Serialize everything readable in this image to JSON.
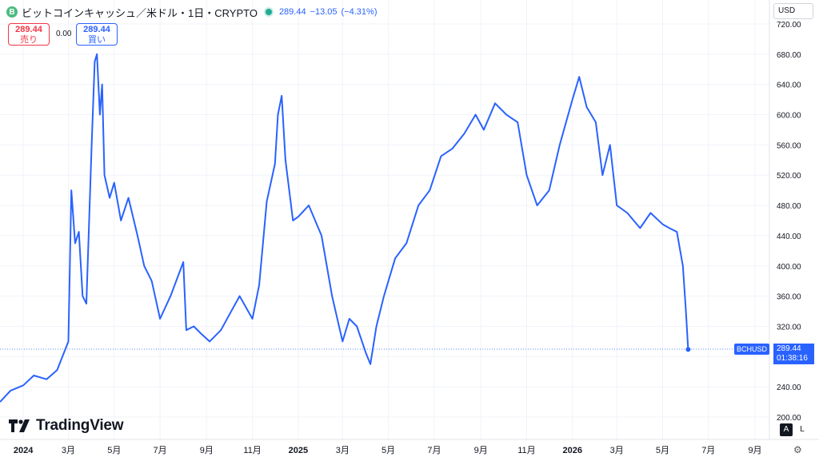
{
  "header": {
    "coin_letter": "B",
    "symbol_title": "ビットコインキャッシュ／米ドル・1日・CRYPTO",
    "last": "289.44",
    "change": "−13.05",
    "change_pct": "(−4.31%)"
  },
  "sell": {
    "price": "289.44",
    "label": "売り"
  },
  "buy": {
    "price": "289.44",
    "label": "買い"
  },
  "spread": "0.00",
  "currency": "USD",
  "brand": "TradingView",
  "last_tag": {
    "symbol": "BCHUSD",
    "price": "289.44",
    "countdown": "01:38:16"
  },
  "buttons": {
    "auto": "A",
    "log": "L"
  },
  "colors": {
    "line": "#2962ff",
    "up": "#22ab94",
    "down": "#f23645",
    "grid": "#f0f3fa"
  },
  "chart_data": {
    "type": "line",
    "series": [
      {
        "name": "",
        "x": [
          "2023-12-01",
          "2023-12-15",
          "2024-01-01",
          "2024-01-15",
          "2024-02-01",
          "2024-02-15",
          "2024-03-01",
          "2024-03-05",
          "2024-03-10",
          "2024-03-15",
          "2024-03-20",
          "2024-03-25",
          "2024-04-01",
          "2024-04-05",
          "2024-04-08",
          "2024-04-12",
          "2024-04-15",
          "2024-04-18",
          "2024-04-25",
          "2024-05-01",
          "2024-05-10",
          "2024-05-20",
          "2024-06-01",
          "2024-06-10",
          "2024-06-20",
          "2024-07-01",
          "2024-07-15",
          "2024-08-01",
          "2024-08-05",
          "2024-08-15",
          "2024-08-25",
          "2024-09-05",
          "2024-09-20",
          "2024-10-01",
          "2024-10-15",
          "2024-11-01",
          "2024-11-10",
          "2024-11-20",
          "2024-12-01",
          "2024-12-05",
          "2024-12-10",
          "2024-12-15",
          "2024-12-25",
          "2025-01-01",
          "2025-01-15",
          "2025-02-01",
          "2025-02-15",
          "2025-03-01",
          "2025-03-10",
          "2025-03-20",
          "2025-04-01",
          "2025-04-07",
          "2025-04-15",
          "2025-04-25",
          "2025-05-10",
          "2025-05-25",
          "2025-06-10",
          "2025-06-25",
          "2025-07-10",
          "2025-07-25",
          "2025-08-10",
          "2025-08-25",
          "2025-09-05",
          "2025-09-20",
          "2025-10-05",
          "2025-10-20",
          "2025-11-01",
          "2025-11-15",
          "2025-12-01",
          "2025-12-15",
          "2026-01-01",
          "2026-01-10",
          "2026-01-20",
          "2026-02-01",
          "2026-02-10",
          "2026-02-20",
          "2026-03-01",
          "2026-03-15",
          "2026-04-01",
          "2026-04-15",
          "2026-05-01",
          "2026-05-10",
          "2026-05-20",
          "2026-05-28",
          "2026-06-01",
          "2026-06-04"
        ],
        "y": [
          220,
          235,
          242,
          255,
          250,
          262,
          300,
          500,
          430,
          445,
          360,
          350,
          560,
          670,
          680,
          600,
          640,
          520,
          490,
          510,
          460,
          490,
          440,
          400,
          380,
          330,
          360,
          405,
          315,
          320,
          310,
          300,
          315,
          335,
          360,
          330,
          375,
          485,
          535,
          600,
          625,
          540,
          460,
          465,
          480,
          440,
          360,
          300,
          330,
          320,
          285,
          270,
          320,
          360,
          410,
          430,
          480,
          500,
          545,
          555,
          575,
          600,
          580,
          615,
          600,
          590,
          520,
          480,
          500,
          560,
          620,
          650,
          610,
          590,
          520,
          560,
          480,
          470,
          450,
          470,
          455,
          450,
          445,
          400,
          340,
          289.44
        ]
      }
    ],
    "ylim": [
      190,
      730
    ],
    "y_ticks": [
      "720.00",
      "680.00",
      "640.00",
      "600.00",
      "560.00",
      "520.00",
      "480.00",
      "440.00",
      "400.00",
      "360.00",
      "320.00",
      "280.00",
      "240.00",
      "200.00"
    ],
    "x_ticks": [
      "2024",
      "3月",
      "5月",
      "7月",
      "9月",
      "11月",
      "2025",
      "3月",
      "5月",
      "7月",
      "9月",
      "11月",
      "2026",
      "3月",
      "5月",
      "7月",
      "9月"
    ],
    "grid": true
  }
}
